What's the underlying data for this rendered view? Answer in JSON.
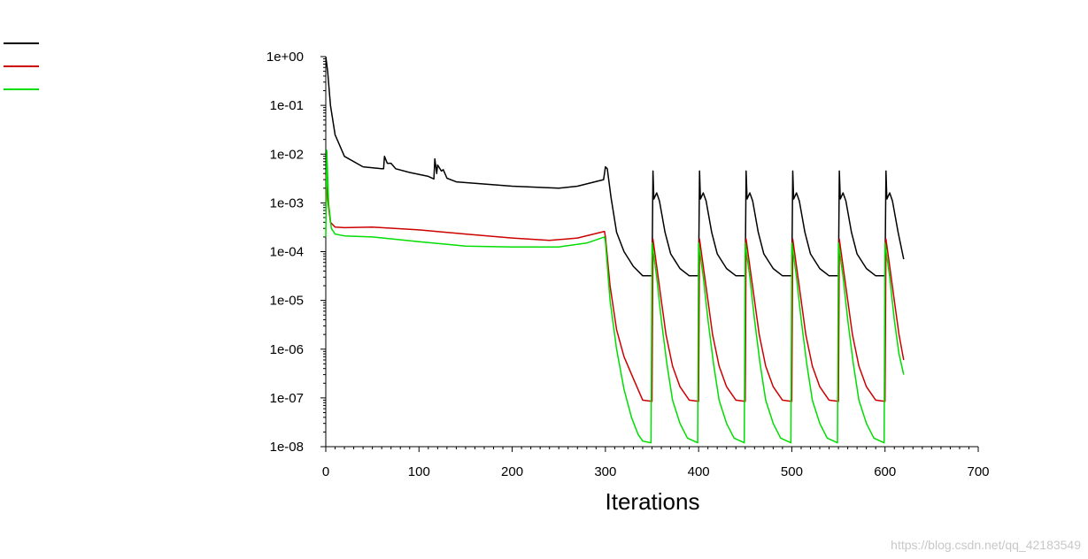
{
  "chart_data": {
    "type": "line",
    "title": "",
    "xlabel": "Iterations",
    "ylabel": "",
    "yscale": "log",
    "xlim": [
      0,
      700
    ],
    "ylim_exp": [
      -8,
      0
    ],
    "xticks": [
      0,
      100,
      200,
      300,
      400,
      500,
      600,
      700
    ],
    "xtick_labels": [
      "0",
      "100",
      "200",
      "300",
      "400",
      "500",
      "600",
      "700"
    ],
    "ytick_labels": [
      "1e-08",
      "1e-07",
      "1e-06",
      "1e-05",
      "1e-04",
      "1e-03",
      "1e-02",
      "1e-01",
      "1e+00"
    ],
    "legend_position": "top-left",
    "series": [
      {
        "name": "",
        "color": "#000000",
        "points": [
          [
            0,
            1
          ],
          [
            2,
            0.5
          ],
          [
            5,
            0.1
          ],
          [
            10,
            0.025
          ],
          [
            20,
            0.009
          ],
          [
            40,
            0.0055
          ],
          [
            60,
            0.005
          ],
          [
            62,
            0.005
          ],
          [
            63,
            0.009
          ],
          [
            66,
            0.0065
          ],
          [
            70,
            0.0065
          ],
          [
            75,
            0.005
          ],
          [
            90,
            0.0042
          ],
          [
            110,
            0.0035
          ],
          [
            116,
            0.0031
          ],
          [
            117,
            0.008
          ],
          [
            119,
            0.004
          ],
          [
            120,
            0.006
          ],
          [
            124,
            0.0045
          ],
          [
            126,
            0.0048
          ],
          [
            130,
            0.0032
          ],
          [
            140,
            0.0027
          ],
          [
            200,
            0.0022
          ],
          [
            250,
            0.002
          ],
          [
            270,
            0.0022
          ],
          [
            298,
            0.003
          ],
          [
            300,
            0.0055
          ],
          [
            302,
            0.005
          ],
          [
            306,
            0.0013
          ],
          [
            312,
            0.00025
          ],
          [
            320,
            0.0001
          ],
          [
            330,
            5e-05
          ],
          [
            340,
            3.2e-05
          ],
          [
            350,
            3.2e-05
          ],
          [
            351,
            0.0045
          ],
          [
            352,
            0.0012
          ],
          [
            355,
            0.0016
          ],
          [
            358,
            0.0011
          ],
          [
            364,
            0.00025
          ],
          [
            370,
            9e-05
          ],
          [
            380,
            4.5e-05
          ],
          [
            390,
            3.2e-05
          ],
          [
            400,
            3.2e-05
          ],
          [
            401,
            0.0045
          ],
          [
            402,
            0.0012
          ],
          [
            405,
            0.0016
          ],
          [
            408,
            0.0011
          ],
          [
            414,
            0.00025
          ],
          [
            420,
            9e-05
          ],
          [
            430,
            4.5e-05
          ],
          [
            440,
            3.2e-05
          ],
          [
            450,
            3.2e-05
          ],
          [
            451,
            0.0045
          ],
          [
            452,
            0.0012
          ],
          [
            455,
            0.0016
          ],
          [
            458,
            0.0011
          ],
          [
            464,
            0.00025
          ],
          [
            470,
            9e-05
          ],
          [
            480,
            4.5e-05
          ],
          [
            490,
            3.2e-05
          ],
          [
            500,
            3.2e-05
          ],
          [
            501,
            0.0045
          ],
          [
            502,
            0.0012
          ],
          [
            505,
            0.0016
          ],
          [
            508,
            0.0011
          ],
          [
            514,
            0.00025
          ],
          [
            520,
            9e-05
          ],
          [
            530,
            4.5e-05
          ],
          [
            540,
            3.2e-05
          ],
          [
            550,
            3.2e-05
          ],
          [
            551,
            0.0045
          ],
          [
            552,
            0.0012
          ],
          [
            555,
            0.0016
          ],
          [
            558,
            0.0011
          ],
          [
            564,
            0.00025
          ],
          [
            570,
            9e-05
          ],
          [
            580,
            4.5e-05
          ],
          [
            590,
            3.2e-05
          ],
          [
            600,
            3.2e-05
          ],
          [
            601,
            0.0045
          ],
          [
            602,
            0.0012
          ],
          [
            605,
            0.0016
          ],
          [
            608,
            0.0011
          ],
          [
            614,
            0.00025
          ],
          [
            620,
            7e-05
          ]
        ]
      },
      {
        "name": "",
        "color": "#cc0000",
        "points": [
          [
            0,
            0.004
          ],
          [
            2,
            0.0012
          ],
          [
            5,
            0.0004
          ],
          [
            10,
            0.00032
          ],
          [
            20,
            0.00031
          ],
          [
            50,
            0.00032
          ],
          [
            100,
            0.00028
          ],
          [
            150,
            0.00023
          ],
          [
            200,
            0.00019
          ],
          [
            240,
            0.00017
          ],
          [
            270,
            0.00019
          ],
          [
            299,
            0.00026
          ],
          [
            300,
            0.0002
          ],
          [
            305,
            2e-05
          ],
          [
            312,
            2.5e-06
          ],
          [
            320,
            7e-07
          ],
          [
            330,
            2.5e-07
          ],
          [
            340,
            9e-08
          ],
          [
            350,
            8.5e-08
          ],
          [
            351,
            0.00018
          ],
          [
            355,
            5e-05
          ],
          [
            360,
            1e-05
          ],
          [
            365,
            2e-06
          ],
          [
            372,
            4.5e-07
          ],
          [
            380,
            1.7e-07
          ],
          [
            390,
            9e-08
          ],
          [
            400,
            8.5e-08
          ],
          [
            401,
            0.00018
          ],
          [
            405,
            5e-05
          ],
          [
            410,
            1e-05
          ],
          [
            415,
            2e-06
          ],
          [
            422,
            4.5e-07
          ],
          [
            430,
            1.7e-07
          ],
          [
            440,
            9e-08
          ],
          [
            450,
            8.5e-08
          ],
          [
            451,
            0.00018
          ],
          [
            455,
            5e-05
          ],
          [
            460,
            1e-05
          ],
          [
            465,
            2e-06
          ],
          [
            472,
            4.5e-07
          ],
          [
            480,
            1.7e-07
          ],
          [
            490,
            9e-08
          ],
          [
            500,
            8.5e-08
          ],
          [
            501,
            0.00018
          ],
          [
            505,
            5e-05
          ],
          [
            510,
            1e-05
          ],
          [
            515,
            2e-06
          ],
          [
            522,
            4.5e-07
          ],
          [
            530,
            1.7e-07
          ],
          [
            540,
            9e-08
          ],
          [
            550,
            8.5e-08
          ],
          [
            551,
            0.00018
          ],
          [
            555,
            5e-05
          ],
          [
            560,
            1e-05
          ],
          [
            565,
            2e-06
          ],
          [
            572,
            4.5e-07
          ],
          [
            580,
            1.7e-07
          ],
          [
            590,
            9e-08
          ],
          [
            600,
            8.5e-08
          ],
          [
            601,
            0.00018
          ],
          [
            605,
            5e-05
          ],
          [
            610,
            1e-05
          ],
          [
            615,
            2e-06
          ],
          [
            620,
            6e-07
          ]
        ]
      },
      {
        "name": "",
        "color": "#00dd00",
        "points": [
          [
            0,
            0.0002
          ],
          [
            1,
            0.012
          ],
          [
            3,
            0.001
          ],
          [
            6,
            0.0003
          ],
          [
            10,
            0.00023
          ],
          [
            20,
            0.00021
          ],
          [
            50,
            0.0002
          ],
          [
            100,
            0.00016
          ],
          [
            150,
            0.00013
          ],
          [
            200,
            0.000125
          ],
          [
            250,
            0.000125
          ],
          [
            280,
            0.00015
          ],
          [
            299,
            0.0002
          ],
          [
            300,
            0.00016
          ],
          [
            305,
            1e-05
          ],
          [
            312,
            1e-06
          ],
          [
            320,
            1.5e-07
          ],
          [
            328,
            4e-08
          ],
          [
            335,
            1.8e-08
          ],
          [
            340,
            1.3e-08
          ],
          [
            349,
            1.2e-08
          ],
          [
            350,
            0.00015
          ],
          [
            355,
            3e-05
          ],
          [
            360,
            4e-06
          ],
          [
            366,
            5e-07
          ],
          [
            372,
            9e-08
          ],
          [
            380,
            3e-08
          ],
          [
            388,
            1.5e-08
          ],
          [
            399,
            1.2e-08
          ],
          [
            400,
            0.00015
          ],
          [
            405,
            3e-05
          ],
          [
            410,
            4e-06
          ],
          [
            416,
            5e-07
          ],
          [
            422,
            9e-08
          ],
          [
            430,
            3e-08
          ],
          [
            438,
            1.5e-08
          ],
          [
            449,
            1.2e-08
          ],
          [
            450,
            0.00015
          ],
          [
            455,
            3e-05
          ],
          [
            460,
            4e-06
          ],
          [
            466,
            5e-07
          ],
          [
            472,
            9e-08
          ],
          [
            480,
            3e-08
          ],
          [
            488,
            1.5e-08
          ],
          [
            499,
            1.2e-08
          ],
          [
            500,
            0.00015
          ],
          [
            505,
            3e-05
          ],
          [
            510,
            4e-06
          ],
          [
            516,
            5e-07
          ],
          [
            522,
            9e-08
          ],
          [
            530,
            3e-08
          ],
          [
            538,
            1.5e-08
          ],
          [
            549,
            1.2e-08
          ],
          [
            550,
            0.00015
          ],
          [
            555,
            3e-05
          ],
          [
            560,
            4e-06
          ],
          [
            566,
            5e-07
          ],
          [
            572,
            9e-08
          ],
          [
            580,
            3e-08
          ],
          [
            588,
            1.5e-08
          ],
          [
            599,
            1.2e-08
          ],
          [
            600,
            0.00015
          ],
          [
            605,
            3e-05
          ],
          [
            610,
            4e-06
          ],
          [
            615,
            8e-07
          ],
          [
            620,
            3e-07
          ]
        ]
      }
    ]
  },
  "watermark": "https://blog.csdn.net/qq_42183549"
}
